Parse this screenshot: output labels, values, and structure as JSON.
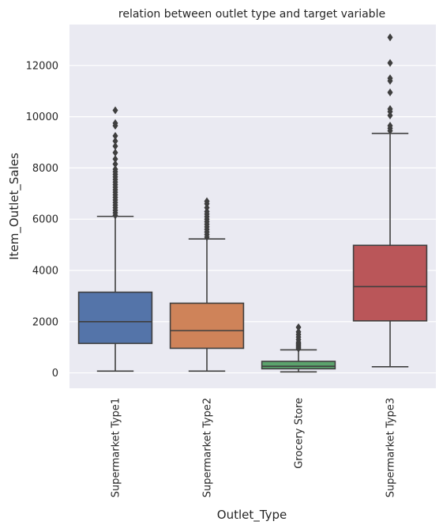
{
  "chart_data": {
    "type": "box",
    "title": "relation between outlet type and target variable",
    "xlabel": "Outlet_Type",
    "ylabel": "Item_Outlet_Sales",
    "ylim": [
      -600,
      13600
    ],
    "yticks": [
      0,
      2000,
      4000,
      6000,
      8000,
      10000,
      12000
    ],
    "grid": true,
    "legend": "none",
    "categories": [
      "Supermarket Type1",
      "Supermarket Type2",
      "Grocery Store",
      "Supermarket Type3"
    ],
    "series": [
      {
        "category": "Supermarket Type1",
        "color": "#4C72B0",
        "whisker_low": 70,
        "q1": 1150,
        "median": 2000,
        "q3": 3150,
        "whisker_high": 6110,
        "outliers": [
          6150,
          6250,
          6350,
          6450,
          6550,
          6650,
          6750,
          6850,
          6950,
          7050,
          7150,
          7250,
          7350,
          7450,
          7550,
          7650,
          7750,
          7850,
          7950,
          8150,
          8350,
          8600,
          8850,
          9050,
          9250,
          9650,
          9750,
          10250
        ]
      },
      {
        "category": "Supermarket Type2",
        "color": "#DD8452",
        "whisker_low": 70,
        "q1": 960,
        "median": 1650,
        "q3": 2720,
        "whisker_high": 5230,
        "outliers": [
          5300,
          5400,
          5500,
          5600,
          5700,
          5800,
          5900,
          6000,
          6100,
          6200,
          6300,
          6450,
          6600,
          6700
        ]
      },
      {
        "category": "Grocery Store",
        "color": "#55A868",
        "whisker_low": 40,
        "q1": 160,
        "median": 260,
        "q3": 450,
        "whisker_high": 900,
        "outliers": [
          950,
          1000,
          1050,
          1100,
          1150,
          1200,
          1300,
          1400,
          1500,
          1600,
          1780
        ]
      },
      {
        "category": "Supermarket Type3",
        "color": "#C44E52",
        "whisker_low": 240,
        "q1": 2030,
        "median": 3370,
        "q3": 4980,
        "whisker_high": 9350,
        "outliers": [
          9450,
          9550,
          9650,
          10050,
          10200,
          10300,
          10950,
          11400,
          11500,
          12100,
          13100
        ]
      }
    ]
  }
}
